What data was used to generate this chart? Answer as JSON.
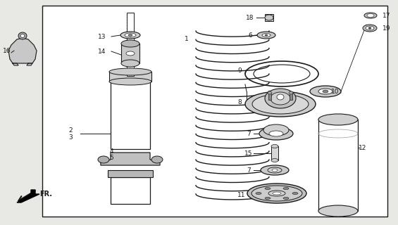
{
  "bg_color": "#e8e8e4",
  "box_color": "#ffffff",
  "line_color": "#1a1a1a",
  "fig_width": 5.65,
  "fig_height": 3.2,
  "dpi": 100
}
